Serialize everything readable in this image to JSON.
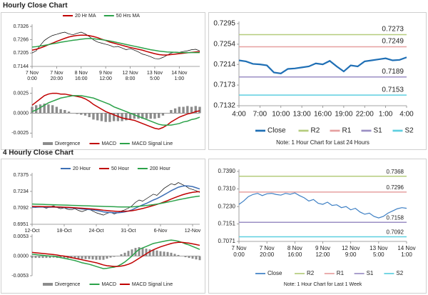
{
  "sections": [
    {
      "title": "Hourly Close Chart"
    },
    {
      "title": "4 Hourly Close Chart"
    }
  ],
  "chart_data": [
    {
      "type": "line",
      "legend": "top",
      "categories": [
        "7 Nov\n0:00",
        null,
        null,
        null,
        null,
        null,
        "7 Nov\n20:00",
        null,
        null,
        null,
        null,
        null,
        "8 Nov\n16:00",
        null,
        null,
        null,
        null,
        null,
        "9 Nov\n12:00",
        null,
        null,
        null,
        null,
        null,
        "12 Nov\n8:00",
        null,
        null,
        null,
        null,
        null,
        "13 Nov\n5:00",
        null,
        null,
        null,
        null,
        null,
        "14 Nov\n1:00",
        null,
        null,
        null,
        null,
        null
      ],
      "ylim": [
        0.7144,
        0.7326
      ],
      "yticks": [
        0.7144,
        0.7205,
        0.7266,
        0.7326
      ],
      "price": {
        "color": "#000000",
        "values": [
          0.7205,
          0.7215,
          0.724,
          0.7262,
          0.7275,
          0.7285,
          0.729,
          0.7296,
          0.73,
          0.7292,
          0.7288,
          0.7295,
          0.73,
          0.7292,
          0.728,
          0.7265,
          0.7255,
          0.725,
          0.7245,
          0.724,
          0.7232,
          0.7235,
          0.7228,
          0.722,
          0.7225,
          0.7218,
          0.721,
          0.72,
          0.7195,
          0.7188,
          0.718,
          0.7178,
          0.7185,
          0.7195,
          0.7205,
          0.721,
          0.7208,
          0.7212,
          0.7215,
          0.722,
          0.7222,
          0.7215
        ]
      },
      "series": [
        {
          "name": "20 Hr MA",
          "color": "#c00000",
          "values": [
            0.7218,
            0.7222,
            0.7228,
            0.7235,
            0.7243,
            0.725,
            0.7258,
            0.7265,
            0.7272,
            0.7278,
            0.7282,
            0.7285,
            0.7286,
            0.7286,
            0.7284,
            0.728,
            0.7275,
            0.7268,
            0.7262,
            0.7255,
            0.725,
            0.7245,
            0.724,
            0.7235,
            0.723,
            0.7226,
            0.7222,
            0.7218,
            0.7212,
            0.7207,
            0.7202,
            0.7198,
            0.7196,
            0.7196,
            0.7198,
            0.72,
            0.7202,
            0.7204,
            0.7206,
            0.7208,
            0.721,
            0.7211
          ]
        },
        {
          "name": "50 Hrs MA",
          "color": "#2ca24a",
          "values": [
            0.7232,
            0.7234,
            0.7237,
            0.724,
            0.7243,
            0.7247,
            0.725,
            0.7254,
            0.7257,
            0.726,
            0.7263,
            0.7265,
            0.7268,
            0.727,
            0.7271,
            0.727,
            0.7268,
            0.7266,
            0.7263,
            0.726,
            0.7256,
            0.7252,
            0.7248,
            0.7244,
            0.724,
            0.7236,
            0.7232,
            0.7228,
            0.7224,
            0.722,
            0.7217,
            0.7214,
            0.7212,
            0.721,
            0.7209,
            0.7208,
            0.7207,
            0.7207,
            0.7207,
            0.7207,
            0.7207,
            0.7207
          ]
        }
      ]
    },
    {
      "type": "combo",
      "legend": "bottom",
      "ylim": [
        -0.0031,
        0.003
      ],
      "yticks": [
        {
          "value": 0.0025,
          "label": "0.0025"
        },
        {
          "value": 0,
          "label": "0.0000"
        },
        {
          "value": -0.0025,
          "label": "-0.0025"
        }
      ],
      "series": [
        {
          "name": "Divergence",
          "type": "bar",
          "color": "#8c8c8c",
          "values": [
            0.0008,
            0.001,
            0.0011,
            0.0012,
            0.0011,
            0.001,
            0.0008,
            0.0005,
            0.0004,
            0.0002,
            0,
            -0.0001,
            -0.0002,
            -0.0003,
            -0.0005,
            -0.0008,
            -0.0009,
            -0.001,
            -0.0011,
            -0.0011,
            -0.001,
            -0.001,
            -0.001,
            -0.0009,
            -0.0008,
            -0.0007,
            -0.0007,
            -0.0007,
            -0.0007,
            -0.0007,
            -0.0007,
            -0.0006,
            -0.0003,
            0,
            0.0004,
            0.0006,
            0.0008,
            0.0008,
            0.0009,
            0.0008,
            0.0009,
            0.0008
          ]
        },
        {
          "name": "MACD",
          "color": "#c00000",
          "values": [
            0.001,
            0.0014,
            0.0018,
            0.0022,
            0.0024,
            0.0025,
            0.0025,
            0.0024,
            0.0024,
            0.0023,
            0.0022,
            0.0021,
            0.002,
            0.0018,
            0.0015,
            0.0011,
            0.0008,
            0.0005,
            0.0002,
            0,
            -0.0002,
            -0.0004,
            -0.0006,
            -0.0007,
            -0.0008,
            -0.0009,
            -0.0011,
            -0.0013,
            -0.0015,
            -0.0017,
            -0.0019,
            -0.002,
            -0.0018,
            -0.0015,
            -0.0011,
            -0.0008,
            -0.0005,
            -0.0003,
            -0.0001,
            0,
            0.0002,
            0.0003
          ]
        },
        {
          "name": "MACD Signal Line",
          "color": "#2ca24a",
          "values": [
            0.0002,
            0.0004,
            0.0007,
            0.001,
            0.0013,
            0.0015,
            0.0017,
            0.0019,
            0.002,
            0.0021,
            0.0022,
            0.0022,
            0.0022,
            0.0021,
            0.002,
            0.0019,
            0.0017,
            0.0015,
            0.0013,
            0.0011,
            0.0008,
            0.0006,
            0.0004,
            0.0002,
            0,
            -0.0002,
            -0.0004,
            -0.0006,
            -0.0008,
            -0.001,
            -0.0012,
            -0.0014,
            -0.0015,
            -0.0015,
            -0.0015,
            -0.0014,
            -0.0013,
            -0.0011,
            -0.001,
            -0.0008,
            -0.0007,
            -0.0005
          ]
        }
      ]
    },
    {
      "type": "line",
      "legend": "bottom",
      "note": "Note: 1 Hour Chart for Last 24 Hours",
      "categories": [
        "4:00",
        null,
        null,
        "7:00",
        null,
        null,
        "10:00",
        null,
        null,
        "13:00",
        null,
        null,
        "16:00",
        null,
        null,
        "19:00",
        null,
        null,
        "22:00",
        null,
        null,
        "1:00",
        null,
        null,
        "4:00"
      ],
      "ylim": [
        0.7132,
        0.7295
      ],
      "yticks": [
        0.7132,
        0.7173,
        0.7214,
        0.7254,
        0.7295
      ],
      "series": [
        {
          "name": "Close",
          "color": "#1f6fb5",
          "values": [
            0.7222,
            0.722,
            0.7215,
            0.7214,
            0.7212,
            0.7198,
            0.7196,
            0.7205,
            0.7206,
            0.7208,
            0.721,
            0.7216,
            0.7214,
            0.7221,
            0.721,
            0.72,
            0.7212,
            0.721,
            0.722,
            0.7222,
            0.7224,
            0.7226,
            0.7222,
            0.7223,
            0.7228
          ]
        },
        {
          "name": "R2",
          "color": "#b5cc7d",
          "value": 0.7273
        },
        {
          "name": "R1",
          "color": "#e6a0a0",
          "value": 0.7249
        },
        {
          "name": "S1",
          "color": "#9b8fc4",
          "value": 0.7189
        },
        {
          "name": "S2",
          "color": "#5ecfe0",
          "value": 0.7153
        }
      ]
    },
    {
      "type": "line",
      "legend": "top",
      "categories": [
        "12-Oct",
        null,
        null,
        null,
        null,
        null,
        null,
        null,
        null,
        "18-Oct",
        null,
        null,
        null,
        null,
        null,
        null,
        null,
        null,
        "24-Oct",
        null,
        null,
        null,
        null,
        null,
        null,
        null,
        null,
        "31-Oct",
        null,
        null,
        null,
        null,
        null,
        null,
        null,
        null,
        "6-Nov",
        null,
        null,
        null,
        null,
        null,
        null,
        null,
        null,
        "12-Nov",
        null,
        null
      ],
      "ylim": [
        0.6951,
        0.7375
      ],
      "yticks": [
        0.6951,
        0.7092,
        0.7234,
        0.7375
      ],
      "price": {
        "color": "#000000",
        "values": [
          0.71,
          0.7095,
          0.7105,
          0.7098,
          0.709,
          0.71,
          0.711,
          0.7095,
          0.7085,
          0.7092,
          0.708,
          0.7075,
          0.7085,
          0.707,
          0.706,
          0.7072,
          0.708,
          0.7065,
          0.705,
          0.704,
          0.703,
          0.7045,
          0.7055,
          0.704,
          0.705,
          0.7065,
          0.7075,
          0.709,
          0.711,
          0.714,
          0.716,
          0.715,
          0.717,
          0.719,
          0.721,
          0.72,
          0.723,
          0.726,
          0.728,
          0.73,
          0.729,
          0.731,
          0.7295,
          0.728,
          0.726,
          0.725,
          0.724,
          0.7225
        ]
      },
      "series": [
        {
          "name": "20 Hour",
          "color": "#3d6fb5",
          "values": [
            0.7098,
            0.7098,
            0.7099,
            0.7099,
            0.7098,
            0.7098,
            0.7099,
            0.7098,
            0.7096,
            0.7095,
            0.7093,
            0.7091,
            0.7089,
            0.7086,
            0.7082,
            0.708,
            0.7078,
            0.7075,
            0.707,
            0.7065,
            0.7058,
            0.7054,
            0.7052,
            0.705,
            0.705,
            0.7053,
            0.7058,
            0.7065,
            0.7075,
            0.709,
            0.7105,
            0.7118,
            0.713,
            0.7145,
            0.716,
            0.7172,
            0.7188,
            0.7205,
            0.7222,
            0.724,
            0.7255,
            0.727,
            0.7278,
            0.7282,
            0.728,
            0.7275,
            0.7265,
            0.7255
          ]
        },
        {
          "name": "50 Hour",
          "color": "#c00000",
          "values": [
            0.7105,
            0.7104,
            0.7104,
            0.7103,
            0.7102,
            0.7102,
            0.7101,
            0.71,
            0.7099,
            0.7098,
            0.7097,
            0.7095,
            0.7093,
            0.7091,
            0.7089,
            0.7087,
            0.7085,
            0.7082,
            0.7079,
            0.7076,
            0.7072,
            0.7069,
            0.7066,
            0.7064,
            0.7062,
            0.7062,
            0.7063,
            0.7065,
            0.7068,
            0.7073,
            0.708,
            0.7087,
            0.7095,
            0.7104,
            0.7113,
            0.7122,
            0.7132,
            0.7143,
            0.7155,
            0.7168,
            0.718,
            0.7192,
            0.7203,
            0.7212,
            0.722,
            0.7226,
            0.723,
            0.7232
          ]
        },
        {
          "name": "200 Hour",
          "color": "#2ca24a",
          "values": [
            0.7125,
            0.7124,
            0.7123,
            0.7122,
            0.7121,
            0.712,
            0.7119,
            0.7118,
            0.7117,
            0.7116,
            0.7115,
            0.7114,
            0.7113,
            0.7112,
            0.7111,
            0.711,
            0.7109,
            0.7108,
            0.7107,
            0.7106,
            0.7105,
            0.7104,
            0.7103,
            0.7102,
            0.7101,
            0.71,
            0.71,
            0.71,
            0.7101,
            0.7103,
            0.7106,
            0.7109,
            0.7112,
            0.7116,
            0.712,
            0.7125,
            0.713,
            0.7136,
            0.7142,
            0.7148,
            0.7155,
            0.7162,
            0.7168,
            0.7174,
            0.718,
            0.7185,
            0.719,
            0.7194
          ]
        }
      ]
    },
    {
      "type": "combo",
      "legend": "bottom",
      "ylim": [
        -0.0053,
        0.0053
      ],
      "yticks": [
        {
          "value": 0.0053,
          "label": "0.0053"
        },
        {
          "value": 0,
          "label": "0.0000"
        },
        {
          "value": -0.0053,
          "label": "-0.0053"
        }
      ],
      "series": [
        {
          "name": "Divergence",
          "type": "bar",
          "color": "#8c8c8c",
          "values": [
            -0.0005,
            -0.0005,
            -0.0005,
            -0.0005,
            -0.0005,
            -0.0005,
            -0.0004,
            -0.0005,
            -0.0005,
            -0.0006,
            -0.0006,
            -0.0006,
            -0.0006,
            -0.0007,
            -0.0008,
            -0.0008,
            -0.0008,
            -0.0009,
            -0.001,
            -0.001,
            -0.001,
            -0.0007,
            -0.0004,
            -0.0002,
            0.0001,
            0.0005,
            0.0009,
            0.0014,
            0.0018,
            0.0022,
            0.0024,
            0.0022,
            0.002,
            0.0018,
            0.0017,
            0.0015,
            0.0013,
            0.0012,
            0.0011,
            0.0009,
            0.0006,
            0.0003,
            0,
            -0.0003,
            -0.0005,
            -0.0007,
            -0.0009,
            -0.0011
          ]
        },
        {
          "name": "MACD",
          "color": "#2ca24a",
          "values": [
            0.0005,
            0.0004,
            0.0003,
            0.0002,
            0.0001,
            0,
            0,
            -0.0002,
            -0.0004,
            -0.0006,
            -0.0008,
            -0.001,
            -0.0012,
            -0.0015,
            -0.0018,
            -0.002,
            -0.0022,
            -0.0025,
            -0.0028,
            -0.0031,
            -0.0034,
            -0.0033,
            -0.0031,
            -0.003,
            -0.0027,
            -0.0022,
            -0.0016,
            -0.0008,
            0,
            0.001,
            0.0018,
            0.0022,
            0.0026,
            0.003,
            0.0034,
            0.0036,
            0.0038,
            0.004,
            0.0042,
            0.0043,
            0.0042,
            0.004,
            0.0037,
            0.0033,
            0.003,
            0.0026,
            0.0022,
            0.0018
          ]
        },
        {
          "name": "MACD Signal Line",
          "color": "#c00000",
          "values": [
            0.001,
            0.0009,
            0.0008,
            0.0007,
            0.0006,
            0.0005,
            0.0004,
            0.0003,
            0.0001,
            0,
            -0.0002,
            -0.0004,
            -0.0006,
            -0.0008,
            -0.001,
            -0.0012,
            -0.0014,
            -0.0016,
            -0.0018,
            -0.0021,
            -0.0024,
            -0.0026,
            -0.0027,
            -0.0028,
            -0.0028,
            -0.0027,
            -0.0025,
            -0.0022,
            -0.0018,
            -0.0012,
            -0.0006,
            0,
            0.0006,
            0.0012,
            0.0017,
            0.0021,
            0.0025,
            0.0028,
            0.0031,
            0.0034,
            0.0036,
            0.0037,
            0.0037,
            0.0036,
            0.0035,
            0.0033,
            0.0031,
            0.0029
          ]
        }
      ]
    },
    {
      "type": "line",
      "legend": "bottom",
      "note": "Note: 1 Hour Chart for Last 1 Week",
      "categories": [
        "7 Nov\n0:00",
        null,
        null,
        null,
        null,
        null,
        "7 Nov\n20:00",
        null,
        null,
        null,
        null,
        null,
        "8 Nov\n16:00",
        null,
        null,
        null,
        null,
        null,
        "9 Nov\n12:00",
        null,
        null,
        null,
        null,
        null,
        "12 Nov\n9:00",
        null,
        null,
        null,
        null,
        null,
        "13 Nov\n5:00",
        null,
        null,
        null,
        null,
        null,
        "14 Nov\n1:00"
      ],
      "ylim": [
        0.7071,
        0.739
      ],
      "yticks": [
        0.7071,
        {
          "value": 0.7151,
          "label": "0.7151"
        },
        {
          "value": 0.723,
          "label": "0.7230"
        },
        {
          "value": 0.731,
          "label": "0.7310"
        },
        {
          "value": 0.739,
          "label": "0.7390"
        }
      ],
      "series": [
        {
          "name": "Close",
          "color": "#3d7fc4",
          "values": [
            0.724,
            0.7255,
            0.7275,
            0.7285,
            0.729,
            0.728,
            0.7288,
            0.729,
            0.7285,
            0.7282,
            0.729,
            0.7286,
            0.7292,
            0.728,
            0.727,
            0.7255,
            0.7262,
            0.7245,
            0.724,
            0.725,
            0.7235,
            0.7238,
            0.7225,
            0.723,
            0.7215,
            0.7222,
            0.7205,
            0.7195,
            0.72,
            0.7185,
            0.7178,
            0.7185,
            0.72,
            0.721,
            0.722,
            0.7225,
            0.7222
          ]
        },
        {
          "name": "R2",
          "color": "#b5cc7d",
          "value": 0.7368
        },
        {
          "name": "R1",
          "color": "#e6a0a0",
          "value": 0.7296
        },
        {
          "name": "S1",
          "color": "#9b8fc4",
          "value": 0.7158
        },
        {
          "name": "S2",
          "color": "#5ecfe0",
          "value": 0.7092
        }
      ]
    }
  ]
}
